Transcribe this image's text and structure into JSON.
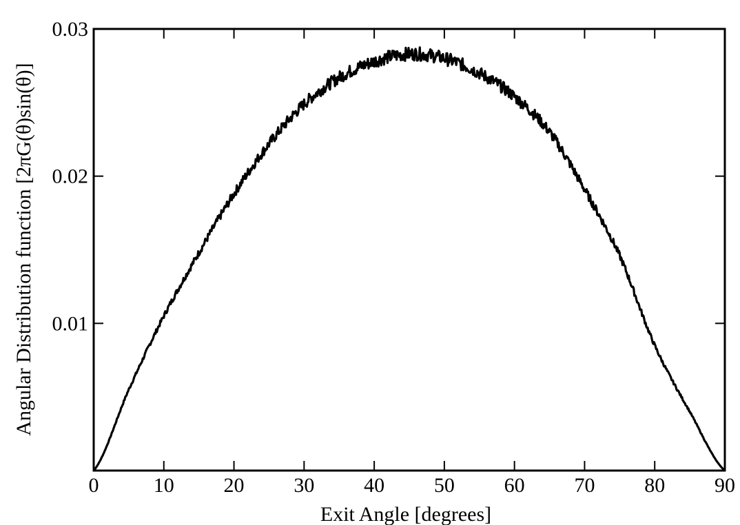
{
  "chart_data": {
    "type": "line",
    "title": "",
    "xlabel": "Exit Angle [degrees]",
    "ylabel": "Angular Distribution function [2πG(θ)sin(θ)]",
    "xlim": [
      0,
      90
    ],
    "ylim": [
      0,
      0.03
    ],
    "x_ticks": [
      0,
      10,
      20,
      30,
      40,
      50,
      60,
      70,
      80,
      90
    ],
    "x_tick_labels": [
      "0",
      "10",
      "20",
      "30",
      "40",
      "50",
      "60",
      "70",
      "80",
      "90"
    ],
    "y_ticks": [
      0.01,
      0.02,
      0.03
    ],
    "y_tick_labels": [
      "0.01",
      "0.02",
      "0.03"
    ],
    "grid": false,
    "legend": "none",
    "line_color": "#000000",
    "series": [
      {
        "x": [
          0,
          5,
          10,
          15,
          20,
          25,
          30,
          35,
          40,
          45,
          50,
          55,
          60,
          65,
          70,
          75,
          80,
          85,
          90
        ],
        "values": [
          0.0,
          0.0055,
          0.0105,
          0.0148,
          0.0188,
          0.0222,
          0.0249,
          0.0267,
          0.0278,
          0.0283,
          0.028,
          0.027,
          0.0254,
          0.023,
          0.0191,
          0.0146,
          0.0085,
          0.004,
          0.0
        ]
      }
    ]
  }
}
